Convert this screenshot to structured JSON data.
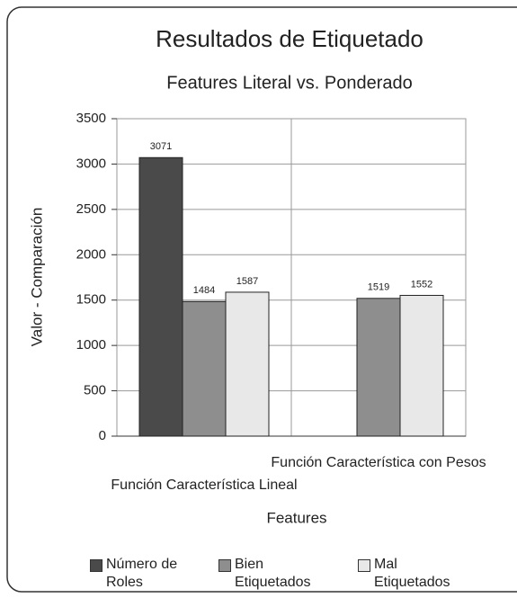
{
  "chart_data": {
    "type": "bar",
    "title": "Resultados de Etiquetado",
    "subtitle": "Features Literal vs. Ponderado",
    "y_label": "Valor - Comparación",
    "x_label": "Features",
    "categories": [
      "Función Característica Lineal",
      "Función Característica con Pesos"
    ],
    "series": [
      {
        "name": "Número de Roles",
        "color": "#4a4a4a",
        "values": [
          3071,
          null
        ]
      },
      {
        "name": "Bien Etiquetados",
        "color": "#8e8e8e",
        "values": [
          1484,
          1519
        ]
      },
      {
        "name": "Mal Etiquetados",
        "color": "#e8e8e8",
        "values": [
          1587,
          1552
        ]
      }
    ],
    "ylim": [
      0,
      3500
    ],
    "yticks": [
      0,
      500,
      1000,
      1500,
      2000,
      2500,
      3000,
      3500
    ],
    "grid": true,
    "legend": "bottom"
  }
}
